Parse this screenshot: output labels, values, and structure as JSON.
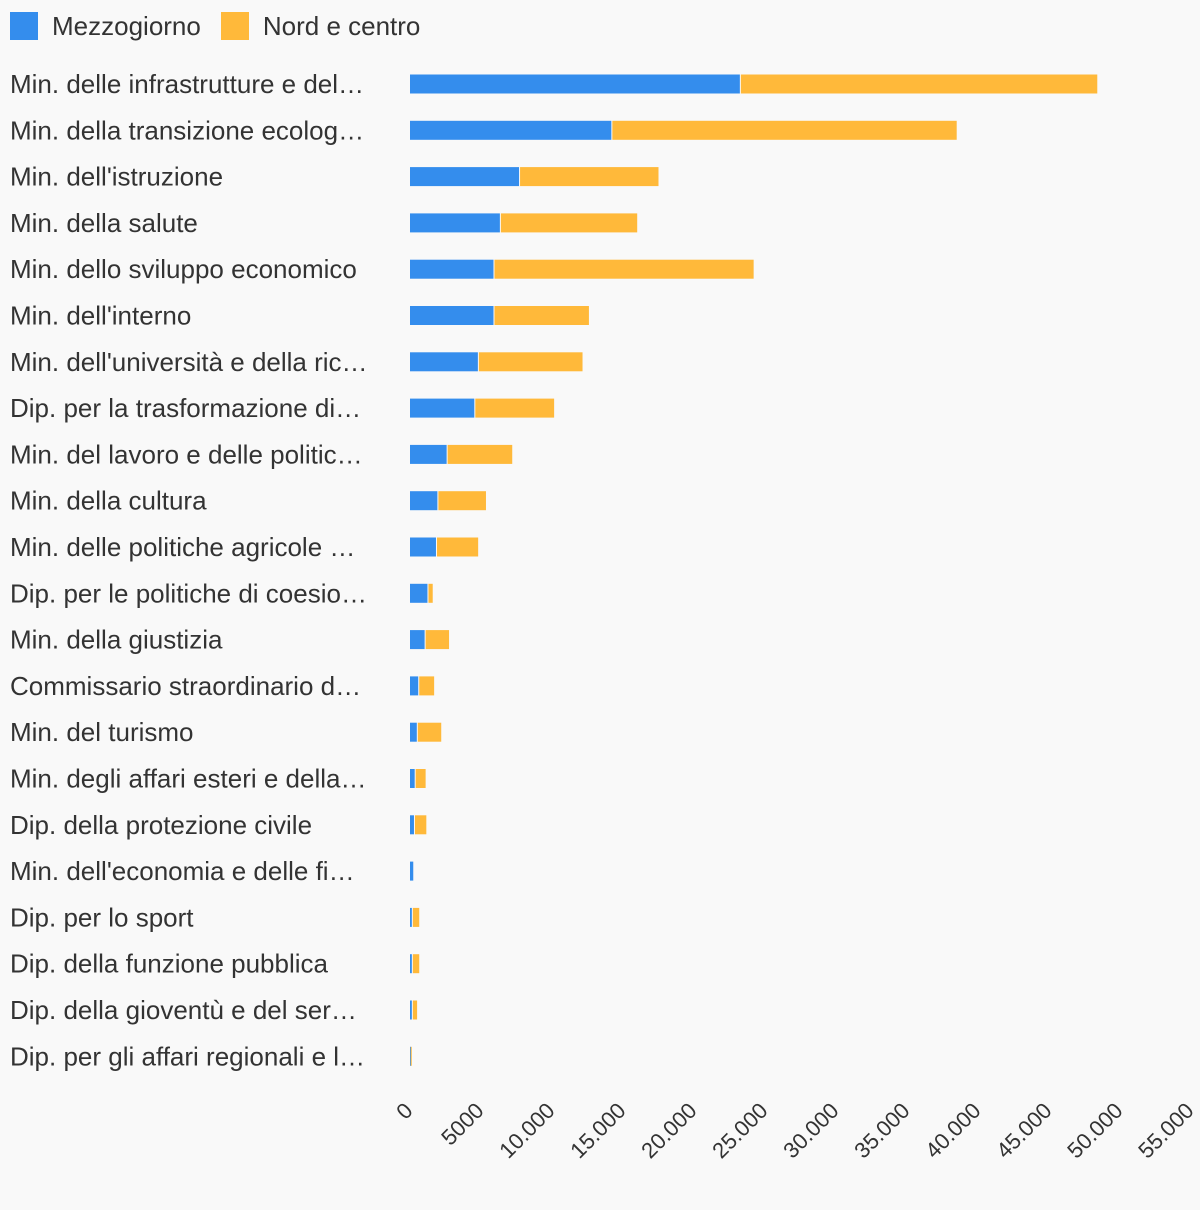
{
  "chart_data": {
    "type": "bar",
    "orientation": "horizontal",
    "stacked": true,
    "legend_position": "top-left",
    "grid": false,
    "xlim": [
      0,
      55000
    ],
    "x_ticks": [
      "0",
      "5000",
      "10.000",
      "15.000",
      "20.000",
      "25.000",
      "30.000",
      "35.000",
      "40.000",
      "45.000",
      "50.000",
      "55.000"
    ],
    "categories": [
      "Min. delle infrastrutture e del…",
      "Min. della transizione ecolog…",
      "Min. dell'istruzione",
      "Min. della salute",
      "Min. dello sviluppo economico",
      "Min. dell'interno",
      "Min. dell'università e della ric…",
      "Dip. per la trasformazione di…",
      "Min. del lavoro e delle politic…",
      "Min. della cultura",
      "Min. delle politiche agricole …",
      "Dip. per le politiche di coesio…",
      "Min. della giustizia",
      "Commissario straordinario d…",
      "Min. del turismo",
      "Min. degli affari esteri e della…",
      "Dip. della protezione civile",
      "Min. dell'economia e delle fi…",
      "Dip. per lo sport",
      "Dip. della funzione pubblica",
      "Dip. della gioventù e del ser…",
      "Dip. per gli affari regionali e l…"
    ],
    "series": [
      {
        "name": "Mezzogiorno",
        "color": "#348ded",
        "values": [
          23300,
          14250,
          7750,
          6400,
          5950,
          5950,
          4850,
          4600,
          2650,
          2000,
          1900,
          1300,
          1100,
          650,
          550,
          400,
          350,
          300,
          200,
          200,
          200,
          50
        ]
      },
      {
        "name": "Nord e centro",
        "color": "#ffb93a",
        "values": [
          25100,
          24250,
          9750,
          9600,
          18250,
          6650,
          7300,
          5550,
          4550,
          3350,
          2900,
          300,
          1650,
          1050,
          1650,
          700,
          800,
          0,
          450,
          450,
          300,
          50
        ]
      }
    ]
  }
}
